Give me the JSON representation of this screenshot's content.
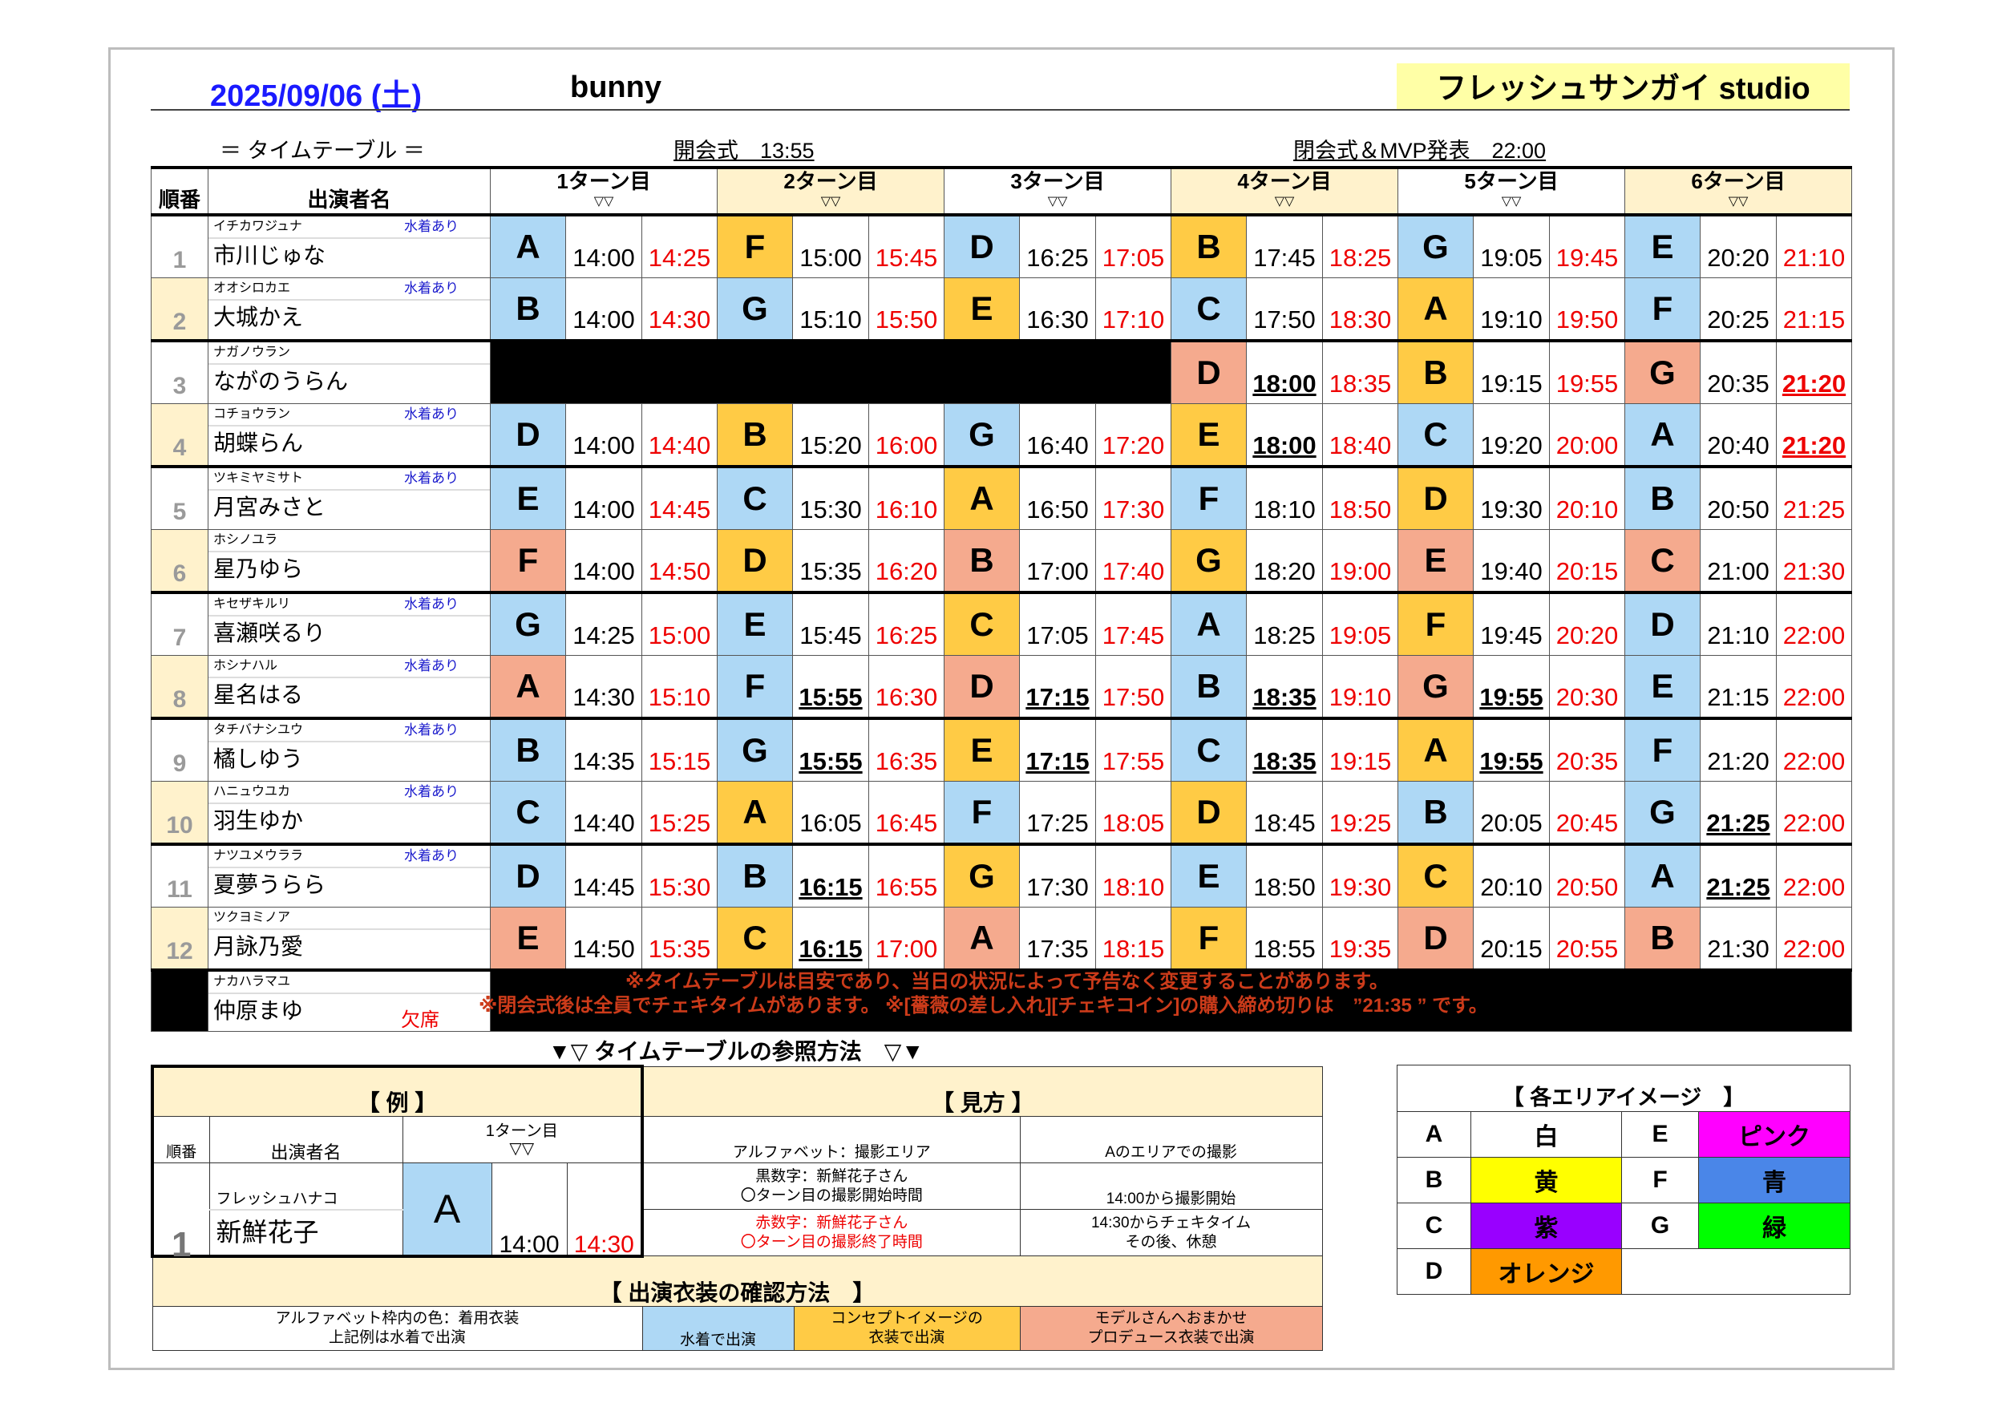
{
  "header": {
    "date": "2025/09/06 (土)",
    "event": "bunny",
    "studio": "フレッシュサンガイ studio",
    "timetable_label": "＝ タイムテーブル ＝",
    "opening": "開会式　13:55",
    "closing": "閉会式＆MVP発表　22:00"
  },
  "table": {
    "col_num": "順番",
    "col_name": "出演者名",
    "turns": [
      "1ターン目",
      "2ターン目",
      "3ターン目",
      "4ターン目",
      "5ターン目",
      "6ターン目"
    ],
    "turn_marker": "▽▽",
    "rows": [
      {
        "num": "1",
        "kana": "イチカワジュナ",
        "name": "市川じゅな",
        "tag": "水着あり",
        "cells": [
          [
            "A",
            "b",
            "14:00",
            "14:25",
            0,
            0
          ],
          [
            "F",
            "y",
            "15:00",
            "15:45",
            0,
            0
          ],
          [
            "D",
            "b",
            "16:25",
            "17:05",
            0,
            0
          ],
          [
            "B",
            "y",
            "17:45",
            "18:25",
            0,
            0
          ],
          [
            "G",
            "b",
            "19:05",
            "19:45",
            0,
            0
          ],
          [
            "E",
            "b",
            "20:20",
            "21:10",
            0,
            0
          ]
        ]
      },
      {
        "num": "2",
        "kana": "オオシロカエ",
        "name": "大城かえ",
        "tag": "水着あり",
        "cells": [
          [
            "B",
            "b",
            "14:00",
            "14:30",
            0,
            0
          ],
          [
            "G",
            "b",
            "15:10",
            "15:50",
            0,
            0
          ],
          [
            "E",
            "y",
            "16:30",
            "17:10",
            0,
            0
          ],
          [
            "C",
            "b",
            "17:50",
            "18:30",
            0,
            0
          ],
          [
            "A",
            "y",
            "19:10",
            "19:50",
            0,
            0
          ],
          [
            "F",
            "b",
            "20:25",
            "21:15",
            0,
            0
          ]
        ]
      },
      {
        "num": "3",
        "kana": "ナガノウラン",
        "name": "ながのうらん",
        "tag": "",
        "cells": [
          null,
          null,
          null,
          [
            "D",
            "s",
            "18:00",
            "18:35",
            1,
            0
          ],
          [
            "B",
            "y",
            "19:15",
            "19:55",
            0,
            0
          ],
          [
            "G",
            "s",
            "20:35",
            "21:20",
            0,
            1
          ]
        ]
      },
      {
        "num": "4",
        "kana": "コチョウラン",
        "name": "胡蝶らん",
        "tag": "水着あり",
        "cells": [
          [
            "D",
            "b",
            "14:00",
            "14:40",
            0,
            0
          ],
          [
            "B",
            "y",
            "15:20",
            "16:00",
            0,
            0
          ],
          [
            "G",
            "b",
            "16:40",
            "17:20",
            0,
            0
          ],
          [
            "E",
            "y",
            "18:00",
            "18:40",
            1,
            0
          ],
          [
            "C",
            "b",
            "19:20",
            "20:00",
            0,
            0
          ],
          [
            "A",
            "b",
            "20:40",
            "21:20",
            0,
            1
          ]
        ]
      },
      {
        "num": "5",
        "kana": "ツキミヤミサト",
        "name": "月宮みさと",
        "tag": "水着あり",
        "cells": [
          [
            "E",
            "b",
            "14:00",
            "14:45",
            0,
            0
          ],
          [
            "C",
            "b",
            "15:30",
            "16:10",
            0,
            0
          ],
          [
            "A",
            "y",
            "16:50",
            "17:30",
            0,
            0
          ],
          [
            "F",
            "b",
            "18:10",
            "18:50",
            0,
            0
          ],
          [
            "D",
            "y",
            "19:30",
            "20:10",
            0,
            0
          ],
          [
            "B",
            "b",
            "20:50",
            "21:25",
            0,
            0
          ]
        ]
      },
      {
        "num": "6",
        "kana": "ホシノユラ",
        "name": "星乃ゆら",
        "tag": "",
        "cells": [
          [
            "F",
            "s",
            "14:00",
            "14:50",
            0,
            0
          ],
          [
            "D",
            "y",
            "15:35",
            "16:20",
            0,
            0
          ],
          [
            "B",
            "s",
            "17:00",
            "17:40",
            0,
            0
          ],
          [
            "G",
            "y",
            "18:20",
            "19:00",
            0,
            0
          ],
          [
            "E",
            "s",
            "19:40",
            "20:15",
            0,
            0
          ],
          [
            "C",
            "s",
            "21:00",
            "21:30",
            0,
            0
          ]
        ]
      },
      {
        "num": "7",
        "kana": "キセザキルリ",
        "name": "喜瀬咲るり",
        "tag": "水着あり",
        "cells": [
          [
            "G",
            "b",
            "14:25",
            "15:00",
            0,
            0
          ],
          [
            "E",
            "b",
            "15:45",
            "16:25",
            0,
            0
          ],
          [
            "C",
            "y",
            "17:05",
            "17:45",
            0,
            0
          ],
          [
            "A",
            "b",
            "18:25",
            "19:05",
            0,
            0
          ],
          [
            "F",
            "y",
            "19:45",
            "20:20",
            0,
            0
          ],
          [
            "D",
            "b",
            "21:10",
            "22:00",
            0,
            0
          ]
        ]
      },
      {
        "num": "8",
        "kana": "ホシナハル",
        "name": "星名はる",
        "tag": "水着あり",
        "cells": [
          [
            "A",
            "s",
            "14:30",
            "15:10",
            0,
            0
          ],
          [
            "F",
            "b",
            "15:55",
            "16:30",
            1,
            0
          ],
          [
            "D",
            "s",
            "17:15",
            "17:50",
            1,
            0
          ],
          [
            "B",
            "b",
            "18:35",
            "19:10",
            1,
            0
          ],
          [
            "G",
            "s",
            "19:55",
            "20:30",
            1,
            0
          ],
          [
            "E",
            "b",
            "21:15",
            "22:00",
            0,
            0
          ]
        ]
      },
      {
        "num": "9",
        "kana": "タチバナシユウ",
        "name": "橘しゆう",
        "tag": "水着あり",
        "cells": [
          [
            "B",
            "b",
            "14:35",
            "15:15",
            0,
            0
          ],
          [
            "G",
            "b",
            "15:55",
            "16:35",
            1,
            0
          ],
          [
            "E",
            "y",
            "17:15",
            "17:55",
            1,
            0
          ],
          [
            "C",
            "b",
            "18:35",
            "19:15",
            1,
            0
          ],
          [
            "A",
            "y",
            "19:55",
            "20:35",
            1,
            0
          ],
          [
            "F",
            "b",
            "21:20",
            "22:00",
            0,
            0
          ]
        ]
      },
      {
        "num": "10",
        "kana": "ハニュウユカ",
        "name": "羽生ゆか",
        "tag": "水着あり",
        "cells": [
          [
            "C",
            "b",
            "14:40",
            "15:25",
            0,
            0
          ],
          [
            "A",
            "y",
            "16:05",
            "16:45",
            0,
            0
          ],
          [
            "F",
            "b",
            "17:25",
            "18:05",
            0,
            0
          ],
          [
            "D",
            "y",
            "18:45",
            "19:25",
            0,
            0
          ],
          [
            "B",
            "b",
            "20:05",
            "20:45",
            0,
            0
          ],
          [
            "G",
            "b",
            "21:25",
            "22:00",
            1,
            0
          ]
        ]
      },
      {
        "num": "11",
        "kana": "ナツユメウララ",
        "name": "夏夢うらら",
        "tag": "水着あり",
        "cells": [
          [
            "D",
            "b",
            "14:45",
            "15:30",
            0,
            0
          ],
          [
            "B",
            "b",
            "16:15",
            "16:55",
            1,
            0
          ],
          [
            "G",
            "y",
            "17:30",
            "18:10",
            0,
            0
          ],
          [
            "E",
            "b",
            "18:50",
            "19:30",
            0,
            0
          ],
          [
            "C",
            "y",
            "20:10",
            "20:50",
            0,
            0
          ],
          [
            "A",
            "b",
            "21:25",
            "22:00",
            1,
            0
          ]
        ]
      },
      {
        "num": "12",
        "kana": "ツクヨミノア",
        "name": "月詠乃愛",
        "tag": "",
        "cells": [
          [
            "E",
            "s",
            "14:50",
            "15:35",
            0,
            0
          ],
          [
            "C",
            "y",
            "16:15",
            "17:00",
            1,
            0
          ],
          [
            "A",
            "s",
            "17:35",
            "18:15",
            0,
            0
          ],
          [
            "F",
            "y",
            "18:55",
            "19:35",
            0,
            0
          ],
          [
            "D",
            "s",
            "20:15",
            "20:55",
            0,
            0
          ],
          [
            "B",
            "s",
            "21:30",
            "22:00",
            0,
            0
          ]
        ]
      },
      {
        "num": "",
        "kana": "ナカハラマユ",
        "name": "仲原まゆ",
        "tag": "欠席",
        "absent": true,
        "cells": [
          null,
          null,
          null,
          null,
          null,
          null
        ]
      }
    ]
  },
  "notes": [
    "※タイムテーブルは目安であり、当日の状況によって予告なく変更することがあります。",
    "※閉会式後は全員でチェキタイムがあります。 ※[薔薇の差し入れ][チェキコイン]の購入締め切りは　”21:35 ” です。"
  ],
  "howto": {
    "title": "▼▽ タイムテーブルの参照方法　▽▼",
    "example_title": "【 例 】",
    "view_title": "【 見方 】",
    "ex_col_num": "順番",
    "ex_col_name": "出演者名",
    "ex_turn": "1ターン目",
    "ex_marker": "▽▽",
    "ex_num": "1",
    "ex_kana": "フレッシュハナコ",
    "ex_name": "新鮮花子",
    "ex_letter": "A",
    "ex_start": "14:00",
    "ex_end": "14:30",
    "v_h1": "アルファベット：撮影エリア",
    "v_h2": "Aのエリアでの撮影",
    "v_b1a": "黒数字：新鮮花子さん",
    "v_b1b": "〇ターン目の撮影開始時間",
    "v_b2": "14:00から撮影開始",
    "v_r1a": "赤数字：新鮮花子さん",
    "v_r1b": "〇ターン目の撮影終了時間",
    "v_r2a": "14:30からチェキタイム",
    "v_r2b": "その後、休憩",
    "costume_title": "【 出演衣装の確認方法　】",
    "c_desc_a": "アルファベット枠内の色：着用衣装",
    "c_desc_b": "上記例は水着で出演",
    "c_blue": "水着で出演",
    "c_yellow_a": "コンセプトイメージの",
    "c_yellow_b": "衣装で出演",
    "c_salmon_a": "モデルさんへおまかせ",
    "c_salmon_b": "プロデュース衣装で出演"
  },
  "areas": {
    "title": "【 各エリアイメージ　】",
    "items": [
      {
        "letter": "A",
        "label": "白",
        "color": "#ffffff"
      },
      {
        "letter": "B",
        "label": "黄",
        "color": "#ffff00"
      },
      {
        "letter": "C",
        "label": "紫",
        "color": "#9900ff"
      },
      {
        "letter": "D",
        "label": "オレンジ",
        "color": "#ff9900"
      },
      {
        "letter": "E",
        "label": "ピンク",
        "color": "#ff00ff"
      },
      {
        "letter": "F",
        "label": "青",
        "color": "#4a86e8"
      },
      {
        "letter": "G",
        "label": "緑",
        "color": "#00ff00"
      }
    ]
  },
  "colors": {
    "b": "#aed8f5",
    "y": "#ffcb45",
    "s": "#f5aa8e"
  }
}
